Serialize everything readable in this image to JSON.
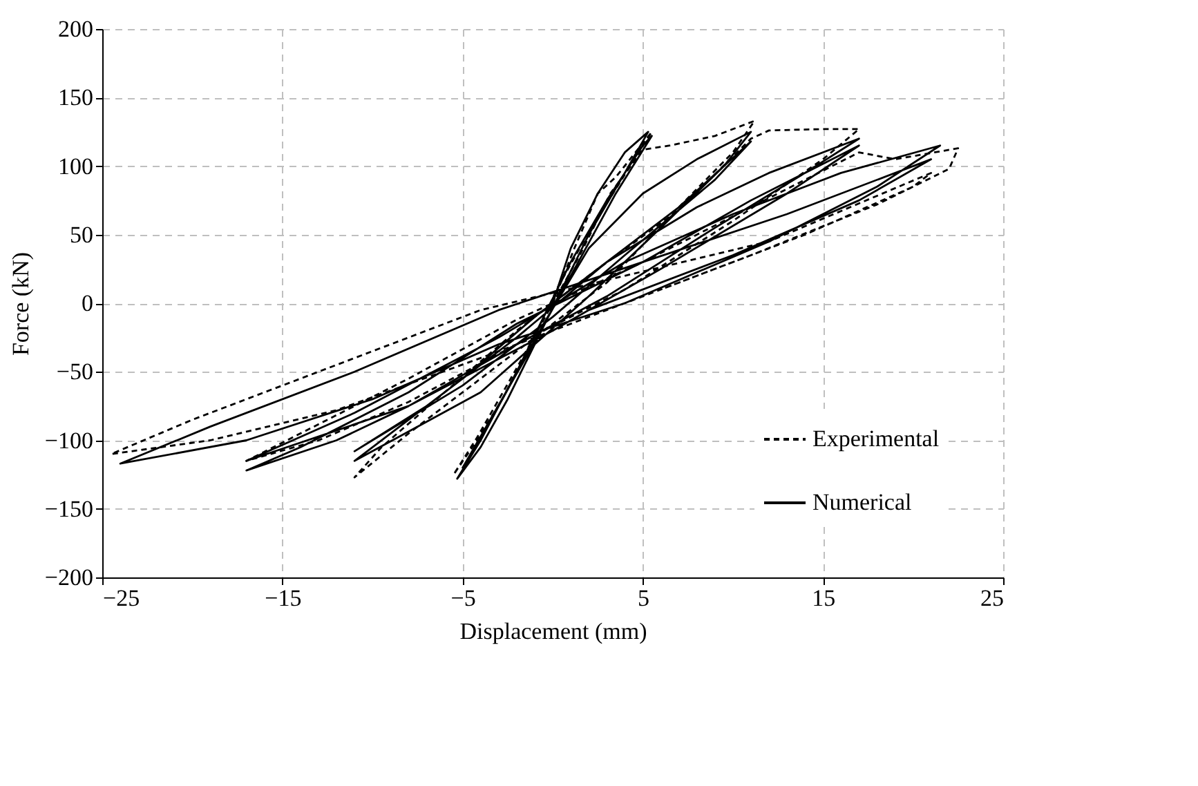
{
  "chart_data": {
    "type": "line",
    "xlabel": "Displacement (mm)",
    "ylabel": "Force (kN)",
    "xlim": [
      -25,
      25
    ],
    "xticks": [
      -25,
      -15,
      -5,
      5,
      15,
      25
    ],
    "ylim": [
      -200,
      200
    ],
    "yticks": [
      -200,
      -150,
      -100,
      -50,
      0,
      50,
      100,
      150,
      200
    ],
    "grid": true,
    "legend": "bottom right",
    "marker": "none",
    "series": [
      {
        "name": "Experimental",
        "color": "#000000",
        "line_style": "dashed",
        "x": [
          0,
          1.2,
          2.5,
          3.5,
          5.5,
          4.2,
          2,
          0.3,
          -1.2,
          -2.8,
          -4.2,
          -5.5,
          -4.2,
          -2.2,
          -0.5,
          1.5,
          3.2,
          5,
          6.5,
          9,
          11.2,
          10,
          7,
          3,
          -1,
          -4.5,
          -8,
          -11,
          -9.5,
          -6,
          -2,
          2.5,
          7,
          11,
          12,
          15,
          17,
          15,
          10,
          4,
          -2,
          -8,
          -13,
          -17,
          -14,
          -8,
          -2,
          5,
          11,
          17,
          19,
          22.5,
          22,
          18,
          11,
          3,
          -4,
          -12,
          -19,
          -24.5,
          -20,
          -12,
          -4,
          4,
          12,
          21,
          20,
          14,
          6
        ],
        "values": [
          0,
          40,
          80,
          92,
          125,
          98,
          52,
          12,
          -30,
          -70,
          -100,
          -125,
          -98,
          -52,
          -12,
          35,
          80,
          112,
          115,
          122,
          133,
          110,
          70,
          15,
          -25,
          -60,
          -95,
          -127,
          -105,
          -65,
          -20,
          25,
          68,
          120,
          126,
          127,
          127,
          105,
          60,
          10,
          -30,
          -72,
          -100,
          -115,
          -95,
          -55,
          -12,
          30,
          70,
          110,
          105,
          113,
          98,
          72,
          35,
          -5,
          -40,
          -78,
          -100,
          -110,
          -85,
          -45,
          -5,
          20,
          45,
          95,
          85,
          50,
          10
        ]
      },
      {
        "name": "Numerical",
        "color": "#000000",
        "line_style": "solid",
        "x": [
          0,
          1,
          2.5,
          4,
          5.3,
          4,
          2,
          0.5,
          -1,
          -2.5,
          -4,
          -5.3,
          -4,
          -2,
          -0.5,
          1,
          3,
          5,
          5.5,
          3.5,
          1,
          -1.5,
          -5,
          -3,
          -0.5,
          2,
          5,
          8,
          11,
          9.5,
          6,
          2,
          -1,
          -4,
          -7.5,
          -11,
          -9,
          -5,
          -1,
          3,
          7,
          11,
          9,
          4,
          0,
          -5,
          -11,
          -7,
          -2,
          3,
          8,
          12,
          17,
          14,
          9,
          3,
          -2,
          -8,
          -12,
          -17,
          -14,
          -8,
          -2,
          5,
          11,
          17,
          13,
          6,
          0,
          -8,
          -17,
          -11,
          -3,
          4,
          10,
          16,
          21.5,
          18,
          12,
          4,
          -3,
          -10,
          -17,
          -24,
          -19,
          -11,
          -3,
          5,
          13,
          21,
          17,
          10,
          2
        ],
        "values": [
          0,
          40,
          80,
          110,
          125,
          95,
          50,
          10,
          -30,
          -70,
          -105,
          -128,
          -100,
          -50,
          -10,
          30,
          75,
          115,
          122,
          80,
          20,
          -40,
          -120,
          -75,
          -15,
          40,
          80,
          105,
          125,
          100,
          55,
          5,
          -30,
          -65,
          -90,
          -115,
          -95,
          -55,
          -10,
          30,
          70,
          118,
          90,
          35,
          -10,
          -60,
          -108,
          -75,
          -25,
          30,
          70,
          95,
          120,
          95,
          55,
          5,
          -30,
          -75,
          -100,
          -122,
          -105,
          -65,
          -15,
          30,
          75,
          115,
          80,
          25,
          -20,
          -75,
          -115,
          -80,
          -25,
          30,
          65,
          95,
          115,
          85,
          45,
          0,
          -30,
          -70,
          -100,
          -117,
          -90,
          -50,
          -5,
          30,
          65,
          105,
          75,
          35,
          -5
        ]
      }
    ]
  }
}
